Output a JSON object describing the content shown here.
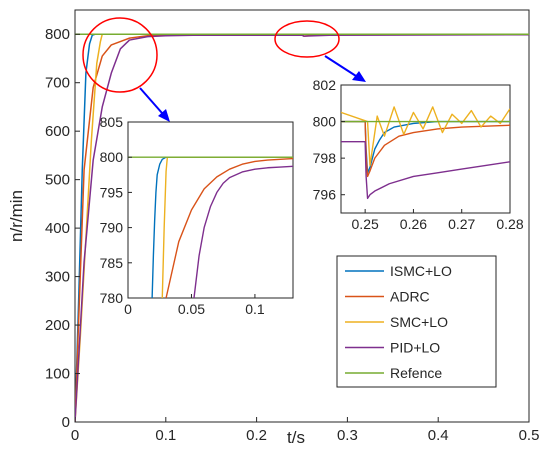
{
  "chart_data": [
    {
      "id": "main",
      "type": "line",
      "title": "",
      "xlabel": "t/s",
      "ylabel": "n/r/min",
      "xlim": [
        0,
        0.5
      ],
      "ylim": [
        0,
        850
      ],
      "xticks": [
        0,
        0.1,
        0.2,
        0.3,
        0.4,
        0.5
      ],
      "xtick_labels": [
        "0",
        "0.1",
        "0.2",
        "0.3",
        "0.4",
        "0.5"
      ],
      "yticks": [
        0,
        100,
        200,
        300,
        400,
        500,
        600,
        700,
        800
      ],
      "ytick_labels": [
        "0",
        "100",
        "200",
        "300",
        "400",
        "500",
        "600",
        "700",
        "800"
      ],
      "grid": false,
      "legend_position": "lower-right",
      "series": [
        {
          "name": "ISMC+LO",
          "color": "#0072BD",
          "x": [
            0,
            0.004,
            0.008,
            0.012,
            0.016,
            0.019,
            0.022,
            0.5
          ],
          "y": [
            0,
            250,
            520,
            720,
            780,
            798,
            800,
            800
          ]
        },
        {
          "name": "ADRC",
          "color": "#D95319",
          "x": [
            0,
            0.01,
            0.02,
            0.03,
            0.04,
            0.06,
            0.08,
            0.1,
            0.13,
            0.25,
            0.252,
            0.27,
            0.3,
            0.5
          ],
          "y": [
            0,
            520,
            690,
            755,
            778,
            792,
            797,
            799,
            800,
            800,
            796,
            799,
            800,
            800
          ]
        },
        {
          "name": "SMC+LO",
          "color": "#EDB120",
          "x": [
            0,
            0.006,
            0.012,
            0.018,
            0.024,
            0.028,
            0.03,
            0.5
          ],
          "y": [
            0,
            180,
            380,
            580,
            740,
            785,
            800,
            800
          ]
        },
        {
          "name": "PID+LO",
          "color": "#7E2F8E",
          "x": [
            0,
            0.01,
            0.02,
            0.03,
            0.04,
            0.05,
            0.06,
            0.08,
            0.1,
            0.13,
            0.25,
            0.252,
            0.28,
            0.5
          ],
          "y": [
            0,
            330,
            540,
            650,
            720,
            770,
            788,
            795,
            797,
            798,
            798,
            796,
            797.8,
            799
          ]
        },
        {
          "name": "Refence",
          "color": "#77AC30",
          "x": [
            0,
            0.5
          ],
          "y": [
            800,
            800
          ]
        }
      ]
    },
    {
      "id": "inset1",
      "type": "line",
      "xlim": [
        0,
        0.13
      ],
      "ylim": [
        780,
        805
      ],
      "xticks": [
        0,
        0.05,
        0.1
      ],
      "xtick_labels": [
        "0",
        "0.05",
        "0.1"
      ],
      "yticks": [
        780,
        785,
        790,
        795,
        800,
        805
      ],
      "ytick_labels": [
        "780",
        "785",
        "790",
        "795",
        "800",
        "805"
      ],
      "series": [
        {
          "name": "ISMC+LO",
          "color": "#0072BD",
          "x": [
            0.019,
            0.02,
            0.021,
            0.022,
            0.023,
            0.025,
            0.027,
            0.03,
            0.13
          ],
          "y": [
            780,
            786,
            791,
            795,
            797.5,
            799,
            799.7,
            800,
            800
          ]
        },
        {
          "name": "ADRC",
          "color": "#D95319",
          "x": [
            0.03,
            0.04,
            0.05,
            0.06,
            0.07,
            0.08,
            0.09,
            0.1,
            0.11,
            0.12,
            0.13
          ],
          "y": [
            780,
            788,
            792.5,
            795.5,
            797.2,
            798.3,
            799,
            799.4,
            799.6,
            799.7,
            799.8
          ]
        },
        {
          "name": "SMC+LO",
          "color": "#EDB120",
          "x": [
            0.027,
            0.0285,
            0.03,
            0.031,
            0.13
          ],
          "y": [
            780,
            790,
            798,
            800,
            800
          ]
        },
        {
          "name": "PID+LO",
          "color": "#7E2F8E",
          "x": [
            0.052,
            0.056,
            0.06,
            0.065,
            0.07,
            0.075,
            0.08,
            0.09,
            0.1,
            0.11,
            0.12,
            0.13
          ],
          "y": [
            780,
            786,
            790,
            793,
            795,
            796.3,
            797.1,
            797.9,
            798.3,
            798.5,
            798.6,
            798.7
          ]
        },
        {
          "name": "Refence",
          "color": "#77AC30",
          "x": [
            0,
            0.13
          ],
          "y": [
            800,
            800
          ]
        }
      ]
    },
    {
      "id": "inset2",
      "type": "line",
      "xlim": [
        0.245,
        0.28
      ],
      "ylim": [
        795,
        802
      ],
      "xticks": [
        0.25,
        0.26,
        0.27,
        0.28
      ],
      "xtick_labels": [
        "0.25",
        "0.26",
        "0.27",
        "0.28"
      ],
      "yticks": [
        796,
        798,
        800,
        802
      ],
      "ytick_labels": [
        "796",
        "798",
        "800",
        "802"
      ],
      "series": [
        {
          "name": "ISMC+LO",
          "color": "#0072BD",
          "x": [
            0.245,
            0.25,
            0.2502,
            0.2505,
            0.251,
            0.2515,
            0.252,
            0.253,
            0.254,
            0.256,
            0.26,
            0.265,
            0.27,
            0.28
          ],
          "y": [
            800,
            800,
            798.5,
            797.2,
            797.5,
            798,
            798.5,
            799,
            799.4,
            799.7,
            799.9,
            800,
            800,
            800
          ]
        },
        {
          "name": "ADRC",
          "color": "#D95319",
          "x": [
            0.245,
            0.25,
            0.2502,
            0.2505,
            0.251,
            0.252,
            0.254,
            0.257,
            0.26,
            0.265,
            0.27,
            0.28
          ],
          "y": [
            800,
            800,
            798.2,
            797,
            797.3,
            798,
            798.7,
            799.2,
            799.4,
            799.6,
            799.7,
            799.8
          ]
        },
        {
          "name": "SMC+LO",
          "color": "#EDB120",
          "x": [
            0.245,
            0.2505,
            0.251,
            0.2525,
            0.254,
            0.256,
            0.258,
            0.26,
            0.262,
            0.264,
            0.266,
            0.268,
            0.27,
            0.272,
            0.274,
            0.276,
            0.278,
            0.28
          ],
          "y": [
            800.5,
            800,
            797.6,
            800.3,
            799.2,
            800.8,
            799.3,
            800.5,
            799.6,
            800.8,
            799.4,
            800.4,
            799.9,
            800.6,
            799.7,
            800.3,
            799.9,
            800.7
          ]
        },
        {
          "name": "PID+LO",
          "color": "#7E2F8E",
          "x": [
            0.245,
            0.25,
            0.2502,
            0.2505,
            0.251,
            0.252,
            0.255,
            0.26,
            0.265,
            0.27,
            0.275,
            0.28
          ],
          "y": [
            798.9,
            798.9,
            797,
            795.8,
            796,
            796.2,
            796.6,
            797,
            797.2,
            797.4,
            797.6,
            797.8
          ]
        },
        {
          "name": "Refence",
          "color": "#77AC30",
          "x": [
            0.245,
            0.28
          ],
          "y": [
            800,
            800
          ]
        }
      ]
    }
  ]
}
